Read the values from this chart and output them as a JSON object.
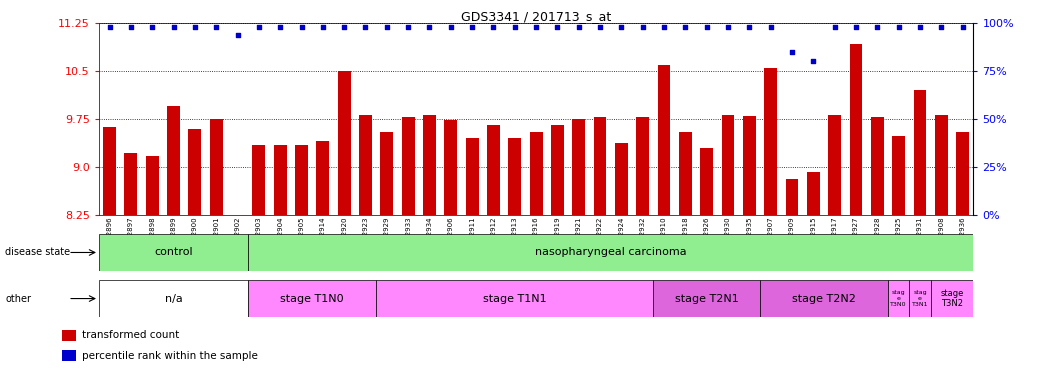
{
  "title": "GDS3341 / 201713_s_at",
  "samples": [
    "GSM312896",
    "GSM312897",
    "GSM312898",
    "GSM312899",
    "GSM312900",
    "GSM312901",
    "GSM312902",
    "GSM312903",
    "GSM312904",
    "GSM312905",
    "GSM312914",
    "GSM312920",
    "GSM312923",
    "GSM312929",
    "GSM312933",
    "GSM312934",
    "GSM312906",
    "GSM312911",
    "GSM312912",
    "GSM312913",
    "GSM312916",
    "GSM312919",
    "GSM312921",
    "GSM312922",
    "GSM312924",
    "GSM312932",
    "GSM312910",
    "GSM312918",
    "GSM312926",
    "GSM312930",
    "GSM312935",
    "GSM312907",
    "GSM312909",
    "GSM312915",
    "GSM312917",
    "GSM312927",
    "GSM312928",
    "GSM312925",
    "GSM312931",
    "GSM312908",
    "GSM312936"
  ],
  "bar_values": [
    9.62,
    9.22,
    9.18,
    9.95,
    9.6,
    9.75,
    8.25,
    9.35,
    9.35,
    9.35,
    9.4,
    10.5,
    9.82,
    9.55,
    9.78,
    9.82,
    9.73,
    9.45,
    9.65,
    9.45,
    9.55,
    9.65,
    9.75,
    9.78,
    9.38,
    9.78,
    10.6,
    9.55,
    9.3,
    9.82,
    9.8,
    10.55,
    8.82,
    8.93,
    9.82,
    10.92,
    9.78,
    9.48,
    10.2,
    9.82,
    9.55
  ],
  "percentile_values": [
    98,
    98,
    98,
    98,
    98,
    98,
    94,
    98,
    98,
    98,
    98,
    98,
    98,
    98,
    98,
    98,
    98,
    98,
    98,
    98,
    98,
    98,
    98,
    98,
    98,
    98,
    98,
    98,
    98,
    98,
    98,
    98,
    85,
    80,
    98,
    98,
    98,
    98,
    98,
    98,
    98
  ],
  "bar_color": "#cc0000",
  "dot_color": "#0000cc",
  "ymin": 8.25,
  "ymax": 11.25,
  "ylim_left": [
    8.25,
    11.25
  ],
  "ylim_right": [
    0,
    100
  ],
  "yticks_left": [
    8.25,
    9.0,
    9.75,
    10.5,
    11.25
  ],
  "yticks_right": [
    0,
    25,
    50,
    75,
    100
  ],
  "disease_state_groups": [
    {
      "label": "control",
      "start": 0,
      "end": 7,
      "color": "#90EE90"
    },
    {
      "label": "nasopharyngeal carcinoma",
      "start": 7,
      "end": 41,
      "color": "#90EE90"
    }
  ],
  "other_groups": [
    {
      "label": "n/a",
      "start": 0,
      "end": 7,
      "color": "#ffffff"
    },
    {
      "label": "stage T1N0",
      "start": 7,
      "end": 13,
      "color": "#FF88FF"
    },
    {
      "label": "stage T1N1",
      "start": 13,
      "end": 26,
      "color": "#FF88FF"
    },
    {
      "label": "stage T2N1",
      "start": 26,
      "end": 31,
      "color": "#DD66DD"
    },
    {
      "label": "stage T2N2",
      "start": 31,
      "end": 37,
      "color": "#DD66DD"
    },
    {
      "label": "stag\ne\nT3N0",
      "start": 37,
      "end": 38,
      "color": "#FF88FF"
    },
    {
      "label": "stag\ne\nT3N1",
      "start": 38,
      "end": 39,
      "color": "#FF88FF"
    },
    {
      "label": "stage\nT3N2",
      "start": 39,
      "end": 41,
      "color": "#FF88FF"
    }
  ],
  "background_color": "#ffffff",
  "row_label_disease": "disease state",
  "row_label_other": "other",
  "legend_items": [
    {
      "label": "transformed count",
      "color": "#cc0000"
    },
    {
      "label": "percentile rank within the sample",
      "color": "#0000cc"
    }
  ]
}
